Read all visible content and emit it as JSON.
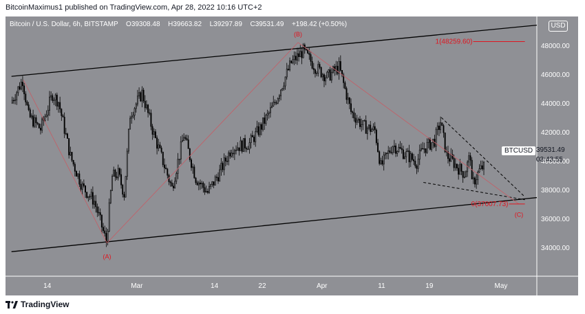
{
  "header": {
    "published": "BitcoinMaximus1 published on TradingView.com, Apr 28, 2022 10:16 UTC+2"
  },
  "symbol": {
    "name": "Bitcoin / U.S. Dollar, 6h, BITSTAMP",
    "ohlc": [
      {
        "key": "O",
        "value": "39308.48"
      },
      {
        "key": "H",
        "value": "39663.82"
      },
      {
        "key": "L",
        "value": "39297.89"
      },
      {
        "key": "C",
        "value": "39531.49"
      }
    ],
    "change": "+198.42 (+0.50%)"
  },
  "currency": "USD",
  "price_tag": {
    "symbol": "BTCUSD",
    "price": "39531.49",
    "countdown": "03:43:55"
  },
  "footer": {
    "brand": "TradingView"
  },
  "colors": {
    "background": "#8f9095",
    "candle": "#000000",
    "annotation": "#e0141e",
    "trendline": "#000000",
    "fib_line": "#e0141e"
  },
  "chart_data": {
    "type": "candlestick",
    "interval": "6h",
    "y_axis": {
      "ticks": [
        34000,
        36000,
        38000,
        40000,
        42000,
        44000,
        46000,
        48000
      ],
      "tick_labels": [
        "34000.00",
        "36000.00",
        "38000.00",
        "40000.00",
        "42000.00",
        "44000.00",
        "46000.00",
        "48000.00"
      ],
      "range": [
        32000,
        50000
      ]
    },
    "x_axis": {
      "ticks": [
        {
          "label": "14",
          "date": "2022-02-14"
        },
        {
          "label": "Mar",
          "date": "2022-03-01"
        },
        {
          "label": "14",
          "date": "2022-03-14"
        },
        {
          "label": "22",
          "date": "2022-03-22"
        },
        {
          "label": "Apr",
          "date": "2022-04-01"
        },
        {
          "label": "11",
          "date": "2022-04-11"
        },
        {
          "label": "19",
          "date": "2022-04-19"
        },
        {
          "label": "May",
          "date": "2022-05-01"
        }
      ],
      "range": [
        "2022-02-07",
        "2022-05-07"
      ]
    },
    "price_path": [
      {
        "date": "2022-02-08",
        "price": 44000
      },
      {
        "date": "2022-02-10",
        "price": 45600
      },
      {
        "date": "2022-02-11",
        "price": 43100
      },
      {
        "date": "2022-02-13",
        "price": 42200
      },
      {
        "date": "2022-02-15",
        "price": 44600
      },
      {
        "date": "2022-02-16",
        "price": 44100
      },
      {
        "date": "2022-02-18",
        "price": 40300
      },
      {
        "date": "2022-02-20",
        "price": 38200
      },
      {
        "date": "2022-02-22",
        "price": 37200
      },
      {
        "date": "2022-02-24",
        "price": 34400
      },
      {
        "date": "2022-02-25",
        "price": 38900
      },
      {
        "date": "2022-02-26",
        "price": 39100
      },
      {
        "date": "2022-02-27",
        "price": 37700
      },
      {
        "date": "2022-02-28",
        "price": 43200
      },
      {
        "date": "2022-03-02",
        "price": 44700
      },
      {
        "date": "2022-03-04",
        "price": 41800
      },
      {
        "date": "2022-03-07",
        "price": 38100
      },
      {
        "date": "2022-03-09",
        "price": 41800
      },
      {
        "date": "2022-03-11",
        "price": 38800
      },
      {
        "date": "2022-03-13",
        "price": 37800
      },
      {
        "date": "2022-03-15",
        "price": 39200
      },
      {
        "date": "2022-03-17",
        "price": 40900
      },
      {
        "date": "2022-03-20",
        "price": 41200
      },
      {
        "date": "2022-03-22",
        "price": 42400
      },
      {
        "date": "2022-03-24",
        "price": 43800
      },
      {
        "date": "2022-03-27",
        "price": 46800
      },
      {
        "date": "2022-03-29",
        "price": 47600
      },
      {
        "date": "2022-03-31",
        "price": 46500
      },
      {
        "date": "2022-04-02",
        "price": 45800
      },
      {
        "date": "2022-04-04",
        "price": 46500
      },
      {
        "date": "2022-04-06",
        "price": 43400
      },
      {
        "date": "2022-04-08",
        "price": 42400
      },
      {
        "date": "2022-04-10",
        "price": 42100
      },
      {
        "date": "2022-04-11",
        "price": 39600
      },
      {
        "date": "2022-04-13",
        "price": 41100
      },
      {
        "date": "2022-04-15",
        "price": 40500
      },
      {
        "date": "2022-04-17",
        "price": 39900
      },
      {
        "date": "2022-04-18",
        "price": 40800
      },
      {
        "date": "2022-04-20",
        "price": 41400
      },
      {
        "date": "2022-04-21",
        "price": 42700
      },
      {
        "date": "2022-04-22",
        "price": 40400
      },
      {
        "date": "2022-04-24",
        "price": 39500
      },
      {
        "date": "2022-04-25",
        "price": 39100
      },
      {
        "date": "2022-04-26",
        "price": 40400
      },
      {
        "date": "2022-04-26",
        "price": 38100
      },
      {
        "date": "2022-04-27",
        "price": 39300
      },
      {
        "date": "2022-04-28",
        "price": 39531
      }
    ],
    "channel_lines": [
      {
        "from": {
          "date": "2022-02-08",
          "price": 45850
        },
        "to": {
          "date": "2022-05-07",
          "price": 49400
        }
      },
      {
        "from": {
          "date": "2022-02-08",
          "price": 33700
        },
        "to": {
          "date": "2022-05-07",
          "price": 37450
        }
      }
    ],
    "wedge_lines": [
      {
        "from": {
          "date": "2022-04-21",
          "price": 43000
        },
        "to": {
          "date": "2022-05-05",
          "price": 37500
        }
      },
      {
        "from": {
          "date": "2022-04-18",
          "price": 38500
        },
        "to": {
          "date": "2022-05-05",
          "price": 37300
        }
      }
    ],
    "wave_lines": [
      {
        "from": {
          "date": "2022-02-10",
          "price": 45600
        },
        "to": {
          "date": "2022-02-24",
          "price": 34300
        }
      },
      {
        "from": {
          "date": "2022-02-24",
          "price": 34300
        },
        "to": {
          "date": "2022-03-28",
          "price": 48200
        }
      },
      {
        "from": {
          "date": "2022-03-28",
          "price": 48200
        },
        "to": {
          "date": "2022-05-04",
          "price": 37000
        }
      }
    ],
    "wave_labels": [
      {
        "label": "(A)",
        "date": "2022-02-24",
        "price": 33400
      },
      {
        "label": "(B)",
        "date": "2022-03-28",
        "price": 48800
      },
      {
        "label": "(C)",
        "date": "2022-05-04",
        "price": 36300
      }
    ],
    "fib_levels": [
      {
        "label": "1(48259.60)",
        "price": 48259.6,
        "from": "2022-04-20",
        "to": "2022-05-05"
      },
      {
        "label": "0(37007.73)",
        "price": 37007.73,
        "from": "2022-04-26",
        "to": "2022-05-05"
      }
    ]
  }
}
